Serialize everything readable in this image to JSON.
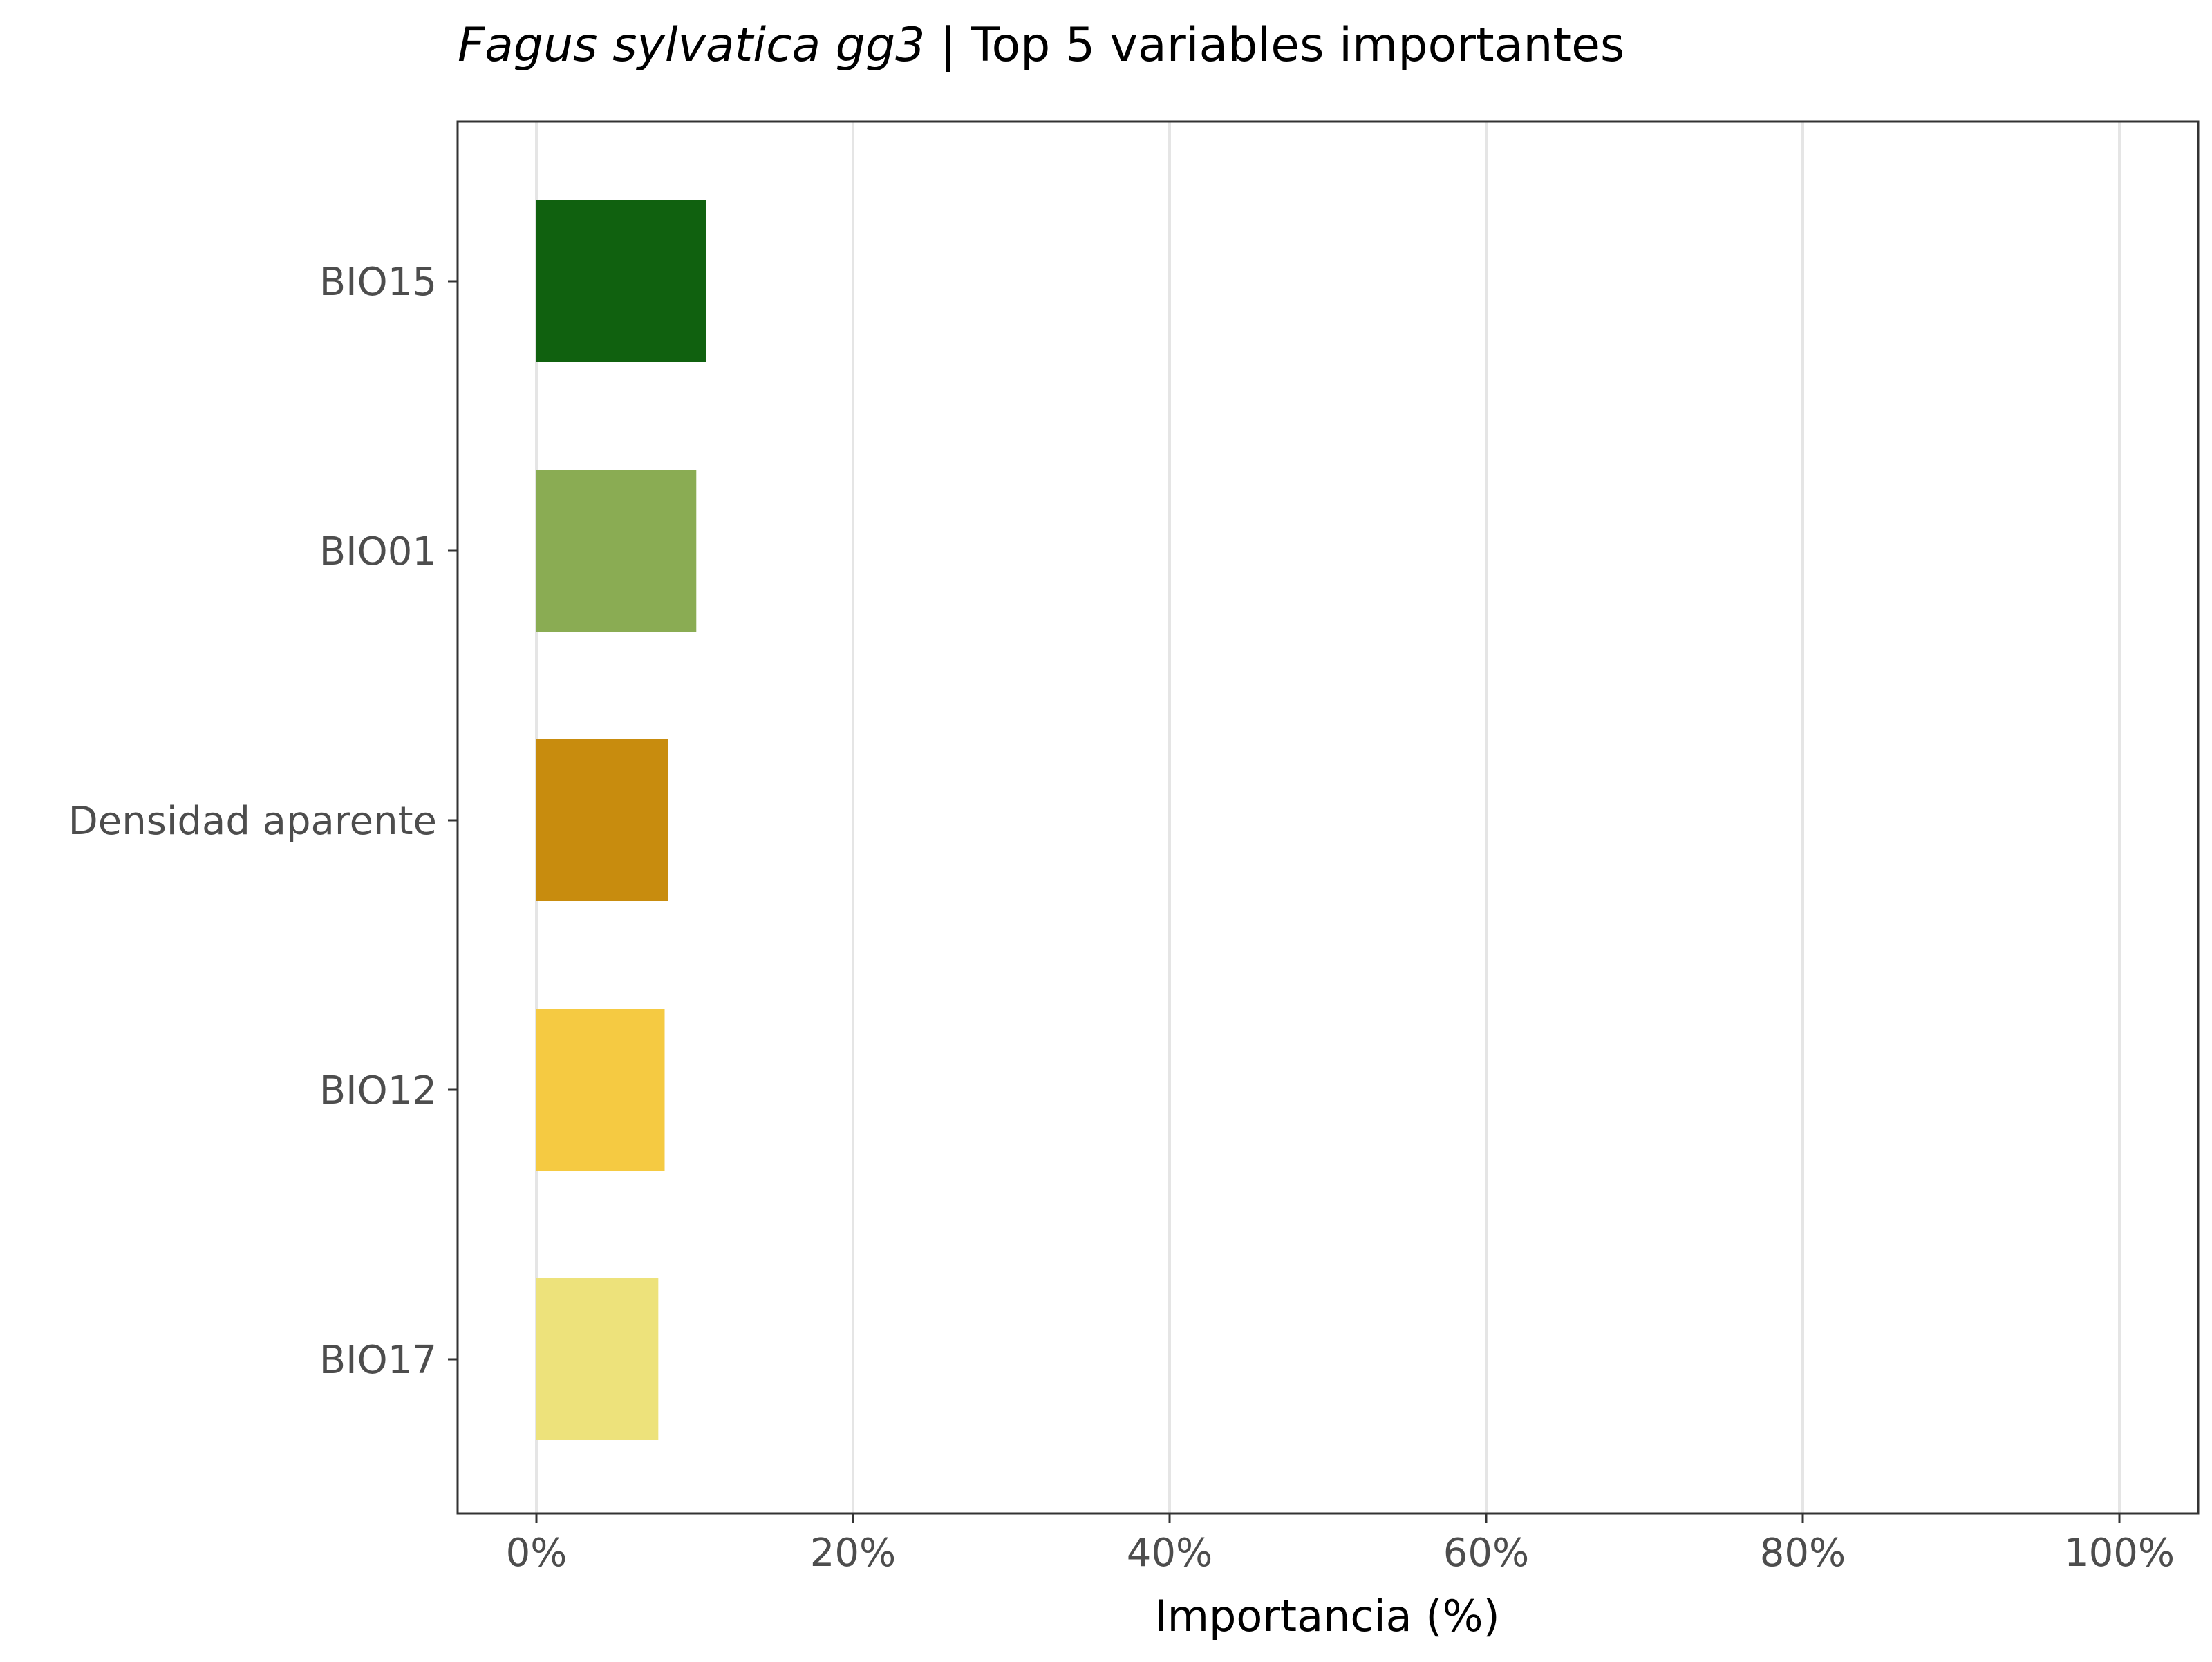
{
  "chart_data": {
    "type": "bar",
    "orientation": "horizontal",
    "title_italic": "Fagus sylvatica gg3",
    "title_rest": " | Top 5 variables importantes",
    "xlabel": "Importancia (%)",
    "ylabel": "",
    "xlim": [
      0,
      100
    ],
    "x_ticks": [
      "0%",
      "20%",
      "40%",
      "60%",
      "80%",
      "100%"
    ],
    "x_tick_values": [
      0,
      20,
      40,
      60,
      80,
      100
    ],
    "categories": [
      "BIO15",
      "BIO01",
      "Densidad aparente",
      "BIO12",
      "BIO17"
    ],
    "values": [
      10.7,
      10.1,
      8.3,
      8.1,
      7.7
    ],
    "colors": [
      "#10610f",
      "#8aac53",
      "#c88c0e",
      "#f5ca42",
      "#ede27b"
    ],
    "grid": "vertical major lines",
    "legend": "none"
  }
}
